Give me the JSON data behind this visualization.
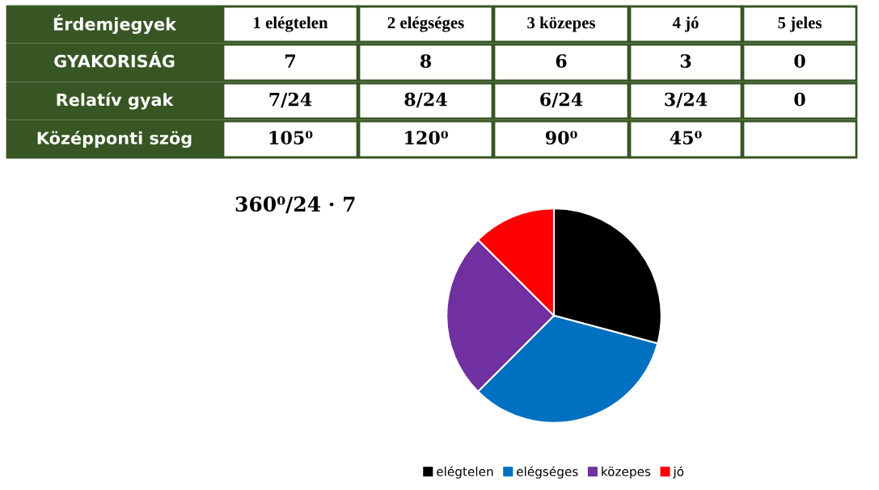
{
  "chart_data": [
    {
      "type": "other",
      "annotations": [
        "Érdemjegyek",
        "1 elégtelen",
        "2 elégséges",
        "3 közepes",
        "4 jó",
        "5 jeles",
        "GYAKORISÁG",
        "7",
        "8",
        "6",
        "3",
        "0",
        "Relatív gyak",
        "7/24",
        "8/24",
        "6/24",
        "3/24",
        "0",
        "Középponti szög",
        "105⁰",
        "120⁰",
        "90⁰",
        "45⁰"
      ]
    },
    {
      "type": "pie",
      "categories": [
        "elégtelen",
        "elégséges",
        "közepes",
        "jó"
      ],
      "values": [
        29.17,
        33.33,
        25,
        12.5
      ],
      "colors": [
        "#000000",
        "#0070c0",
        "#7030a0",
        "#ff0000"
      ],
      "legend": "bottom",
      "annotations": [
        "360⁰/24 · 7"
      ]
    }
  ]
}
